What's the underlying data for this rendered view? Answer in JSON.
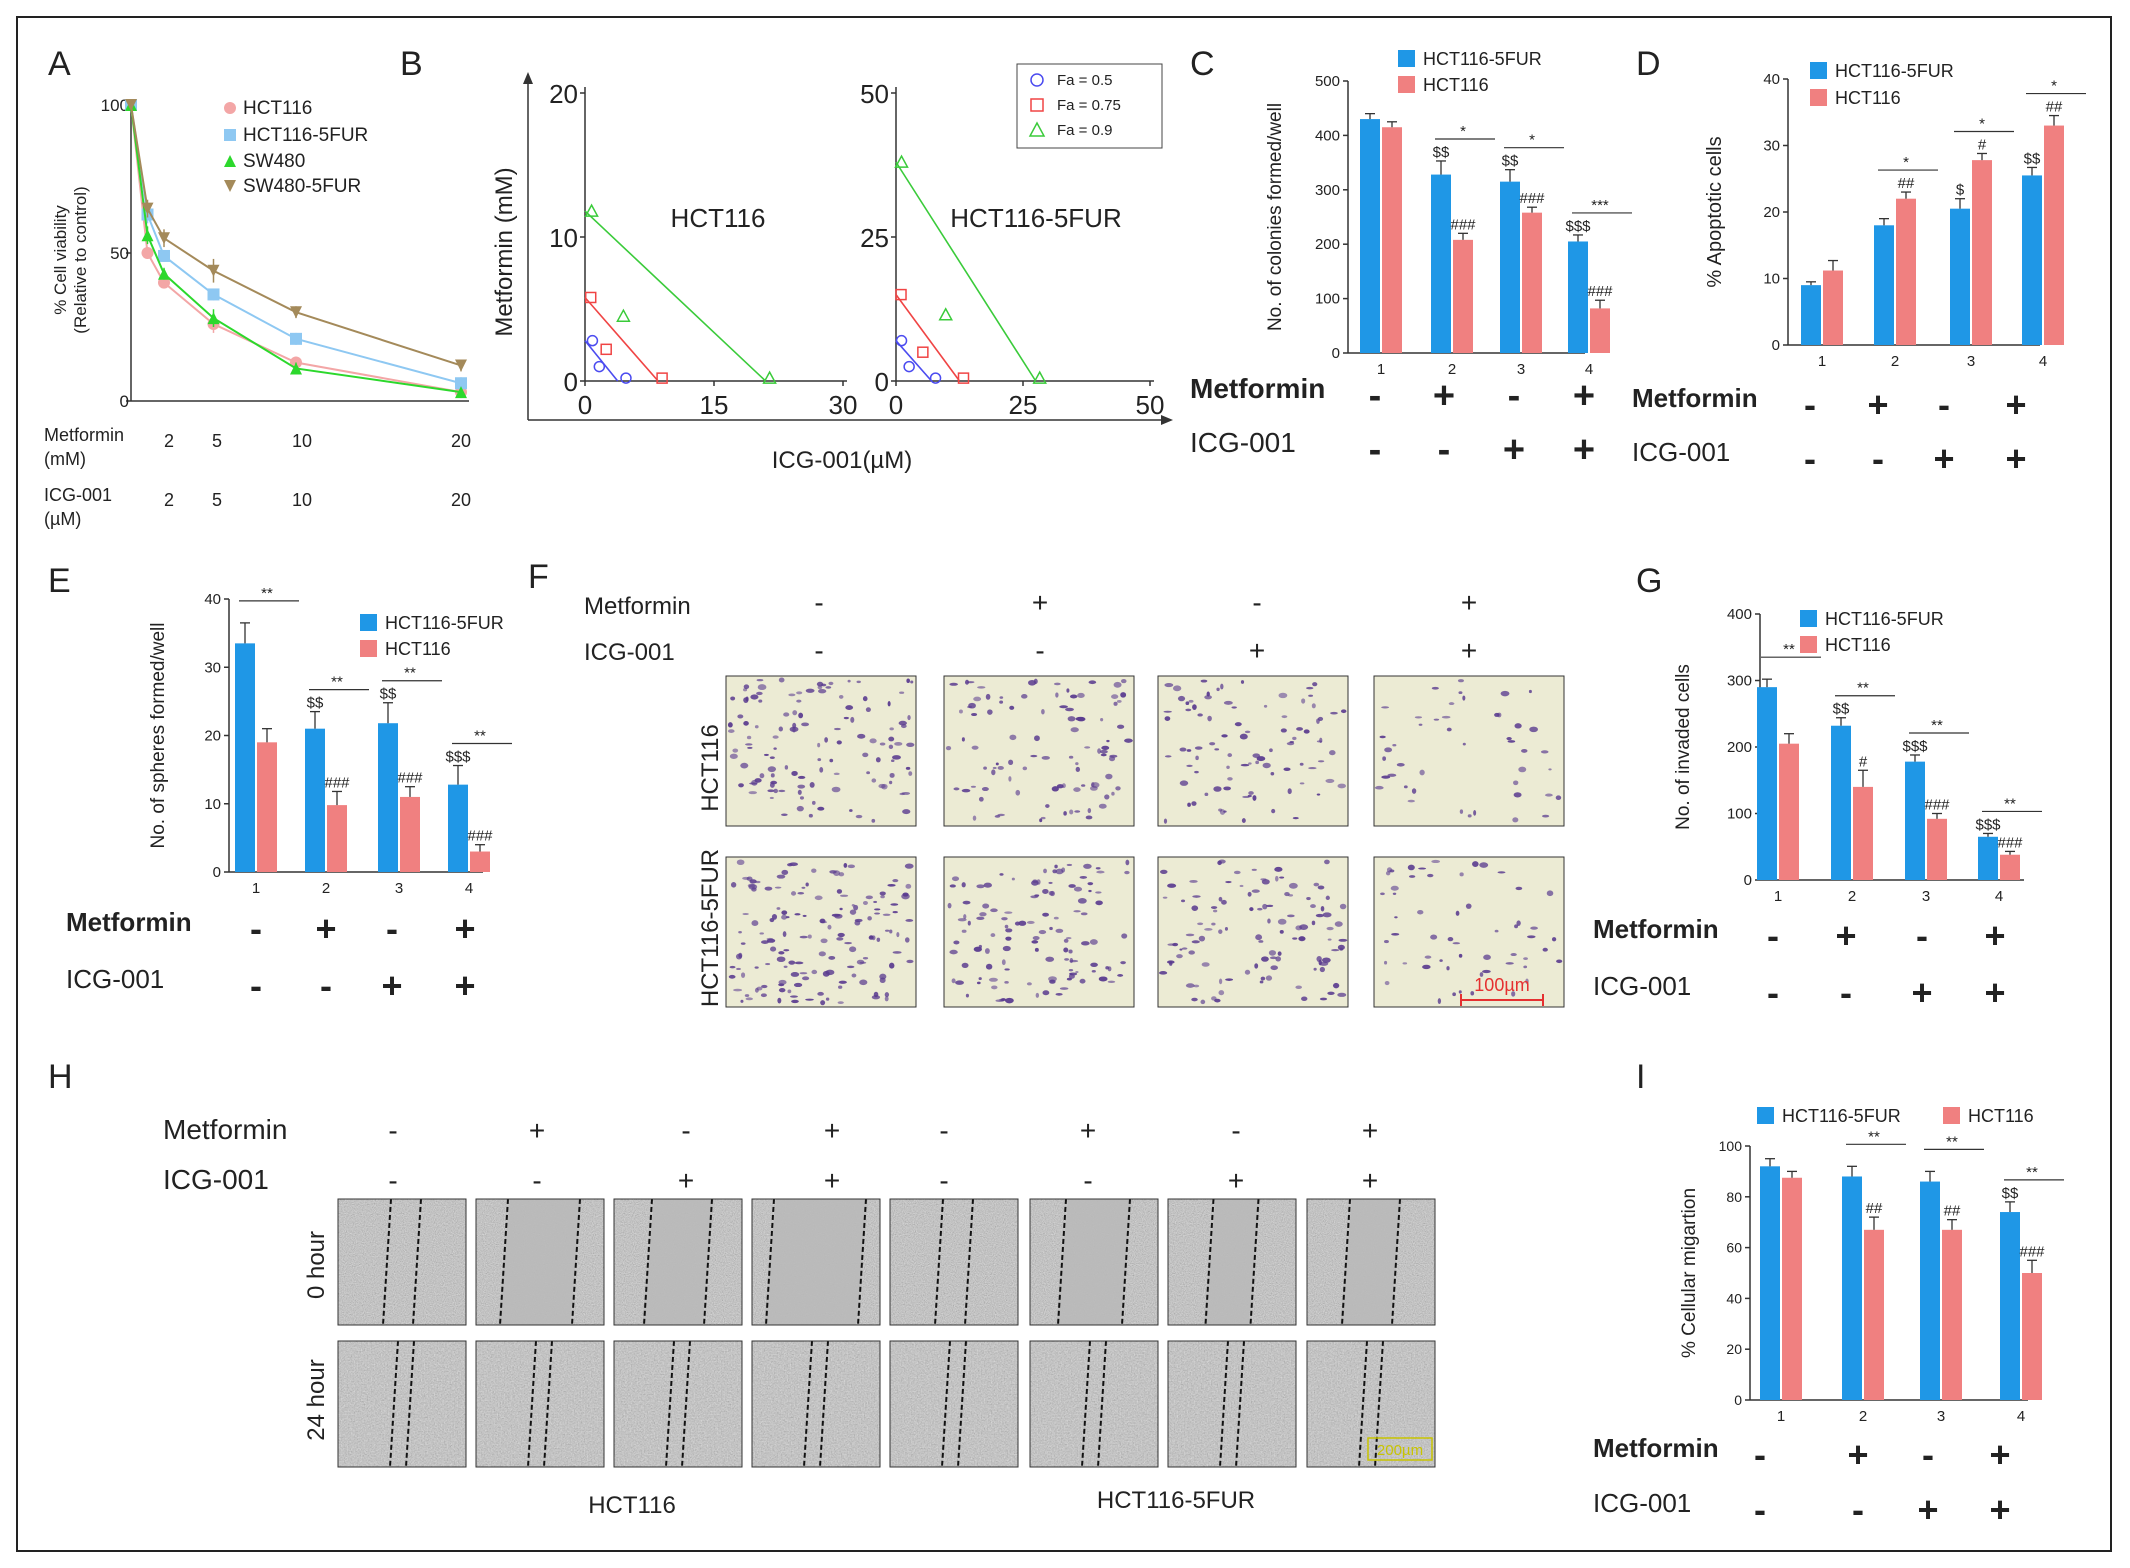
{
  "colors": {
    "blue": "#1f97e6",
    "red": "#f08080",
    "hct116": "#f3a6a6",
    "hct116_5fur": "#8ec8f2",
    "sw480": "#2cd82c",
    "sw480_5fur": "#a48a5a",
    "fa05": "#4b4bf0",
    "fa075": "#f04444",
    "fa09": "#3acb3a",
    "micro_stain": "#5a3b8f",
    "scale_red": "#e53030",
    "scale_yellow": "#c8c400"
  },
  "chart_data": [
    {
      "panel": "A",
      "type": "line",
      "ylabel": "% Cell viability (Relative to control)",
      "ylabel_lines": [
        "% Cell viability",
        "(Relative to control)"
      ],
      "ylim": [
        0,
        100
      ],
      "yticks": [
        "100",
        "50",
        "0"
      ],
      "x": [
        0,
        1,
        2,
        5,
        10,
        20
      ],
      "xlim": [
        0,
        20
      ],
      "series": [
        {
          "name": "HCT116",
          "values": [
            100,
            50,
            40,
            26,
            13,
            3
          ],
          "marker": "circle"
        },
        {
          "name": "HCT116-5FUR",
          "values": [
            100,
            63,
            49,
            36,
            21,
            6
          ],
          "marker": "square"
        },
        {
          "name": "SW480",
          "values": [
            100,
            56,
            43,
            28,
            11,
            3
          ],
          "marker": "triangle-up"
        },
        {
          "name": "SW480-5FUR",
          "values": [
            100,
            65,
            55,
            44,
            30,
            12
          ],
          "marker": "triangle-down"
        }
      ],
      "errors": [
        [
          0,
          2,
          2,
          3,
          2,
          1
        ],
        [
          0,
          3,
          2,
          2,
          2,
          2
        ],
        [
          0,
          3,
          2,
          3,
          2,
          1
        ],
        [
          0,
          3,
          3,
          4,
          2,
          2
        ]
      ],
      "treatment": {
        "metformin_label": "Metformin",
        "metformin_unit": "(mM)",
        "metformin_values": [
          "2",
          "5",
          "10",
          "20"
        ],
        "icg_label": "ICG-001",
        "icg_unit": "(µM)",
        "icg_values": [
          "2",
          "5",
          "10",
          "20"
        ]
      }
    },
    {
      "panel": "B",
      "type": "scatter",
      "ylabel": "Metformin (mM)",
      "xlabel": "ICG-001(µM)",
      "legend": [
        "Fa = 0.5",
        "Fa = 0.75",
        "Fa = 0.9"
      ],
      "subplots": [
        {
          "title": "HCT116",
          "xlim": [
            0,
            30
          ],
          "ylim": [
            0,
            20
          ],
          "xticks": [
            "0",
            "15",
            "30"
          ],
          "yticks": [
            "0",
            "10",
            "20"
          ],
          "isobolograms": [
            {
              "name": "Fa = 0.5",
              "intercepts": [
                3.8,
                2.8
              ],
              "points": [
                [
                  0.4,
                  2.8
                ],
                [
                  1.2,
                  1.0
                ],
                [
                  4.3,
                  0.2
                ]
              ]
            },
            {
              "name": "Fa = 0.75",
              "intercepts": [
                8.5,
                5.8
              ],
              "points": [
                [
                  0.2,
                  5.8
                ],
                [
                  2.0,
                  2.2
                ],
                [
                  8.5,
                  0.2
                ]
              ]
            },
            {
              "name": "Fa = 0.9",
              "intercepts": [
                21.0,
                11.8
              ],
              "points": [
                [
                  0.3,
                  11.8
                ],
                [
                  4.0,
                  4.5
                ],
                [
                  21.0,
                  0.2
                ]
              ]
            }
          ]
        },
        {
          "title": "HCT116-5FUR",
          "xlim": [
            0,
            50
          ],
          "ylim": [
            0,
            50
          ],
          "xticks": [
            "0",
            "25",
            "50"
          ],
          "yticks": [
            "0",
            "25",
            "50"
          ],
          "isobolograms": [
            {
              "name": "Fa = 0.5",
              "intercepts": [
                7.0,
                7.0
              ],
              "points": [
                [
                  0.3,
                  7.0
                ],
                [
                  1.8,
                  2.5
                ],
                [
                  7.0,
                  0.5
                ]
              ]
            },
            {
              "name": "Fa = 0.75",
              "intercepts": [
                12.5,
                15.0
              ],
              "points": [
                [
                  0.2,
                  15.0
                ],
                [
                  4.5,
                  5.0
                ],
                [
                  12.5,
                  0.5
                ]
              ]
            },
            {
              "name": "Fa = 0.9",
              "intercepts": [
                27.5,
                38.0
              ],
              "points": [
                [
                  0.3,
                  38.0
                ],
                [
                  9.0,
                  11.5
                ],
                [
                  27.5,
                  0.5
                ]
              ]
            }
          ]
        }
      ]
    },
    {
      "panel": "C",
      "type": "bar",
      "ylabel": "No. of colonies formed/well",
      "ylim": [
        0,
        500
      ],
      "yticks": [
        "0",
        "100",
        "200",
        "300",
        "400",
        "500"
      ],
      "categories": [
        "1",
        "2",
        "3",
        "4"
      ],
      "series": [
        {
          "name": "HCT116-5FUR",
          "values": [
            430,
            328,
            315,
            205
          ],
          "errors": [
            10,
            25,
            22,
            12
          ],
          "labels": [
            "",
            "$$",
            "$$",
            "$$$"
          ]
        },
        {
          "name": "HCT116",
          "values": [
            415,
            208,
            258,
            82
          ],
          "errors": [
            10,
            12,
            10,
            15
          ],
          "labels": [
            "",
            "###",
            "###",
            "###"
          ]
        }
      ],
      "significance": [
        "",
        "*",
        "*",
        "***"
      ],
      "metformin": [
        "-",
        "+",
        "-",
        "+"
      ],
      "icg": [
        "-",
        "-",
        "+",
        "+"
      ],
      "metformin_label": "Metformin",
      "icg_label": "ICG-001"
    },
    {
      "panel": "D",
      "type": "bar",
      "ylabel": "% Apoptotic cells",
      "ylim": [
        0,
        40
      ],
      "yticks": [
        "0",
        "10",
        "20",
        "30",
        "40"
      ],
      "categories": [
        "1",
        "2",
        "3",
        "4"
      ],
      "series": [
        {
          "name": "HCT116-5FUR",
          "values": [
            9,
            18,
            20.5,
            25.5
          ],
          "errors": [
            0.5,
            1,
            1.5,
            1.2
          ],
          "labels": [
            "",
            "",
            "$",
            "$$"
          ]
        },
        {
          "name": "HCT116",
          "values": [
            11.2,
            22,
            27.8,
            33
          ],
          "errors": [
            1.5,
            1,
            1,
            1.5
          ],
          "labels": [
            "",
            "##",
            "#",
            "##"
          ]
        }
      ],
      "significance": [
        "",
        "*",
        "*",
        "*"
      ],
      "metformin": [
        "-",
        "+",
        "-",
        "+"
      ],
      "icg": [
        "-",
        "-",
        "+",
        "+"
      ],
      "metformin_label": "Metformin",
      "icg_label": "ICG-001"
    },
    {
      "panel": "E",
      "type": "bar",
      "ylabel": "No. of spheres formed/well",
      "ylim": [
        0,
        40
      ],
      "yticks": [
        "0",
        "10",
        "20",
        "30",
        "40"
      ],
      "categories": [
        "1",
        "2",
        "3",
        "4"
      ],
      "series": [
        {
          "name": "HCT116-5FUR",
          "values": [
            33.5,
            21,
            21.8,
            12.8
          ],
          "errors": [
            3,
            2.5,
            3,
            2.8
          ],
          "labels": [
            "",
            "$$",
            "$$",
            "$$$"
          ]
        },
        {
          "name": "HCT116",
          "values": [
            19,
            9.8,
            11,
            3
          ],
          "errors": [
            2,
            2,
            1.5,
            1
          ],
          "labels": [
            "",
            "###",
            "###",
            "###"
          ]
        }
      ],
      "significance": [
        "**",
        "**",
        "**",
        "**"
      ],
      "metformin": [
        "-",
        "+",
        "-",
        "+"
      ],
      "icg": [
        "-",
        "-",
        "+",
        "+"
      ],
      "metformin_label": "Metformin",
      "icg_label": "ICG-001"
    },
    {
      "panel": "G",
      "type": "bar",
      "ylabel": "No. of  invaded cells",
      "ylim": [
        0,
        400
      ],
      "yticks": [
        "0",
        "100",
        "200",
        "300",
        "400"
      ],
      "categories": [
        "1",
        "2",
        "3",
        "4"
      ],
      "series": [
        {
          "name": "HCT116-5FUR",
          "values": [
            290,
            232,
            178,
            65
          ],
          "errors": [
            12,
            12,
            10,
            5
          ],
          "labels": [
            "",
            "$$",
            "$$$",
            "$$$"
          ]
        },
        {
          "name": "HCT116",
          "values": [
            205,
            140,
            92,
            38
          ],
          "errors": [
            15,
            25,
            8,
            5
          ],
          "labels": [
            "",
            "#",
            "###",
            "###"
          ]
        }
      ],
      "significance": [
        "**",
        "**",
        "**",
        "**"
      ],
      "metformin": [
        "-",
        "+",
        "-",
        "+"
      ],
      "icg": [
        "-",
        "-",
        "+",
        "+"
      ],
      "metformin_label": "Metformin",
      "icg_label": "ICG-001"
    },
    {
      "panel": "I",
      "type": "bar",
      "ylabel": "% Cellular migartion",
      "ylim": [
        0,
        100
      ],
      "yticks": [
        "0",
        "20",
        "40",
        "60",
        "80",
        "100"
      ],
      "categories": [
        "1",
        "2",
        "3",
        "4"
      ],
      "series": [
        {
          "name": "HCT116-5FUR",
          "values": [
            92,
            88,
            86,
            74
          ],
          "errors": [
            3,
            4,
            4,
            4
          ],
          "labels": [
            "",
            "",
            "",
            "$$"
          ]
        },
        {
          "name": "HCT116",
          "values": [
            87.5,
            67,
            67,
            50
          ],
          "errors": [
            2.5,
            5,
            4,
            5
          ],
          "labels": [
            "",
            "##",
            "##",
            "###"
          ]
        }
      ],
      "significance": [
        "",
        "**",
        "**",
        "**"
      ],
      "metformin": [
        "-",
        "+",
        "-",
        "+"
      ],
      "icg": [
        "-",
        "-",
        "+",
        "+"
      ],
      "metformin_label": "Metformin",
      "icg_label": "ICG-001"
    }
  ],
  "panels": {
    "letters": [
      "A",
      "B",
      "C",
      "D",
      "E",
      "F",
      "G",
      "H",
      "I"
    ]
  },
  "panel_f": {
    "metformin_label": "Metformin",
    "icg_label": "ICG-001",
    "metformin": [
      "-",
      "+",
      "-",
      "+"
    ],
    "icg": [
      "-",
      "-",
      "+",
      "+"
    ],
    "rows": [
      "HCT116",
      "HCT116-5FUR"
    ],
    "scale_bar": "100µm"
  },
  "panel_h": {
    "metformin_label": "Metformin",
    "icg_label": "ICG-001",
    "metformin": [
      "-",
      "+",
      "-",
      "+",
      "-",
      "+",
      "-",
      "+"
    ],
    "icg": [
      "-",
      "-",
      "+",
      "+",
      "-",
      "-",
      "+",
      "+"
    ],
    "rows": [
      "0 hour",
      "24 hour"
    ],
    "groups": [
      "HCT116",
      "HCT116-5FUR"
    ],
    "scale_bar": "200µm"
  }
}
